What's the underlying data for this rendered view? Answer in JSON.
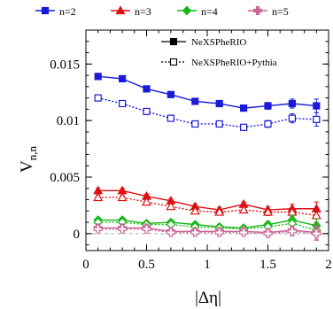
{
  "chart_data": {
    "type": "line",
    "xlabel": "|Δη|",
    "ylabel": "V",
    "ylabel_sub": "n,n",
    "xlim": [
      0,
      2
    ],
    "ylim": [
      -0.0015,
      0.018
    ],
    "x_ticks": [
      0,
      0.5,
      1,
      1.5,
      2
    ],
    "x_tick_labels": [
      "0",
      "0.5",
      "1",
      "1.5",
      "2"
    ],
    "y_ticks": [
      0,
      0.005,
      0.01,
      0.015
    ],
    "y_tick_labels": [
      "0",
      "0.005",
      "0.01",
      "0.015"
    ],
    "grid": false,
    "legend_top": [
      {
        "name": "n=2",
        "color": "#1a1ad9",
        "marker": "square"
      },
      {
        "name": "n=3",
        "color": "#dd1111",
        "marker": "triangle"
      },
      {
        "name": "n=4",
        "color": "#18b818",
        "marker": "diamond"
      },
      {
        "name": "n=5",
        "color": "#cc6699",
        "marker": "cross"
      }
    ],
    "legend_inset": [
      {
        "name": "NeXSPheRIO",
        "style": "solid",
        "marker": "filled"
      },
      {
        "name": "NeXSPheRIO+Pythia",
        "style": "dotted",
        "marker": "open"
      }
    ],
    "x": [
      0.1,
      0.3,
      0.5,
      0.7,
      0.9,
      1.1,
      1.3,
      1.5,
      1.7,
      1.9
    ],
    "series": [
      {
        "key": "n2_nexspherio",
        "color": "#1a1ad9",
        "marker": "square",
        "filled": true,
        "dash": false,
        "values": [
          0.0139,
          0.0137,
          0.0128,
          0.0123,
          0.0117,
          0.0115,
          0.0111,
          0.0113,
          0.0115,
          0.0113
        ],
        "errors": [
          0.0002,
          0.0002,
          0.0002,
          0.0002,
          0.0002,
          0.0002,
          0.0002,
          0.0003,
          0.0004,
          0.0006
        ]
      },
      {
        "key": "n2_pythia",
        "color": "#1a1ad9",
        "marker": "square",
        "filled": false,
        "dash": true,
        "values": [
          0.012,
          0.0115,
          0.0108,
          0.0102,
          0.0097,
          0.0097,
          0.0094,
          0.0097,
          0.0102,
          0.0101
        ],
        "errors": [
          0.0002,
          0.0002,
          0.0002,
          0.0002,
          0.0002,
          0.0002,
          0.0002,
          0.0003,
          0.0004,
          0.0006
        ]
      },
      {
        "key": "n3_nexspherio",
        "color": "#dd1111",
        "marker": "triangle",
        "filled": true,
        "dash": false,
        "values": [
          0.0038,
          0.0038,
          0.0033,
          0.0029,
          0.0024,
          0.0021,
          0.0026,
          0.0021,
          0.0022,
          0.0022
        ],
        "errors": [
          0.0002,
          0.0002,
          0.0002,
          0.0002,
          0.0002,
          0.0002,
          0.0002,
          0.0003,
          0.0004,
          0.0006
        ]
      },
      {
        "key": "n3_pythia",
        "color": "#dd1111",
        "marker": "triangle",
        "filled": false,
        "dash": true,
        "values": [
          0.0032,
          0.0032,
          0.0028,
          0.0024,
          0.002,
          0.0019,
          0.0021,
          0.0019,
          0.0019,
          0.0016
        ],
        "errors": [
          0.0002,
          0.0002,
          0.0002,
          0.0002,
          0.0002,
          0.0002,
          0.0002,
          0.0003,
          0.0004,
          0.0006
        ]
      },
      {
        "key": "n4_nexspherio",
        "color": "#18b818",
        "marker": "diamond",
        "filled": true,
        "dash": false,
        "values": [
          0.0012,
          0.0012,
          0.0009,
          0.001,
          0.0008,
          0.0006,
          0.0005,
          0.0008,
          0.0012,
          0.0007
        ],
        "errors": [
          0.0002,
          0.0002,
          0.0002,
          0.0002,
          0.0002,
          0.0002,
          0.0002,
          0.0003,
          0.0004,
          0.0006
        ]
      },
      {
        "key": "n4_pythia",
        "color": "#18b818",
        "marker": "diamond",
        "filled": false,
        "dash": true,
        "values": [
          0.001,
          0.001,
          0.0008,
          0.0008,
          0.0006,
          0.0005,
          0.0004,
          0.0006,
          0.0009,
          0.0003
        ],
        "errors": [
          0.0002,
          0.0002,
          0.0002,
          0.0002,
          0.0002,
          0.0002,
          0.0002,
          0.0003,
          0.0004,
          0.0006
        ]
      },
      {
        "key": "n5_nexspherio",
        "color": "#cc6699",
        "marker": "cross",
        "filled": true,
        "dash": false,
        "values": [
          0.0005,
          0.0005,
          0.0005,
          0.0002,
          0.0002,
          0.0002,
          0.0002,
          0.0001,
          0.0003,
          0.0001
        ],
        "errors": [
          0.0002,
          0.0002,
          0.0002,
          0.0002,
          0.0002,
          0.0002,
          0.0002,
          0.0003,
          0.0004,
          0.0006
        ]
      },
      {
        "key": "n5_pythia",
        "color": "#cc6699",
        "marker": "cross",
        "filled": false,
        "dash": true,
        "values": [
          0.0004,
          0.0004,
          0.0004,
          0.0001,
          0.0001,
          0.0001,
          0.0001,
          0.0,
          0.0002,
          0.0
        ],
        "errors": [
          0.0002,
          0.0002,
          0.0002,
          0.0002,
          0.0002,
          0.0002,
          0.0002,
          0.0003,
          0.0004,
          0.0006
        ]
      }
    ]
  }
}
